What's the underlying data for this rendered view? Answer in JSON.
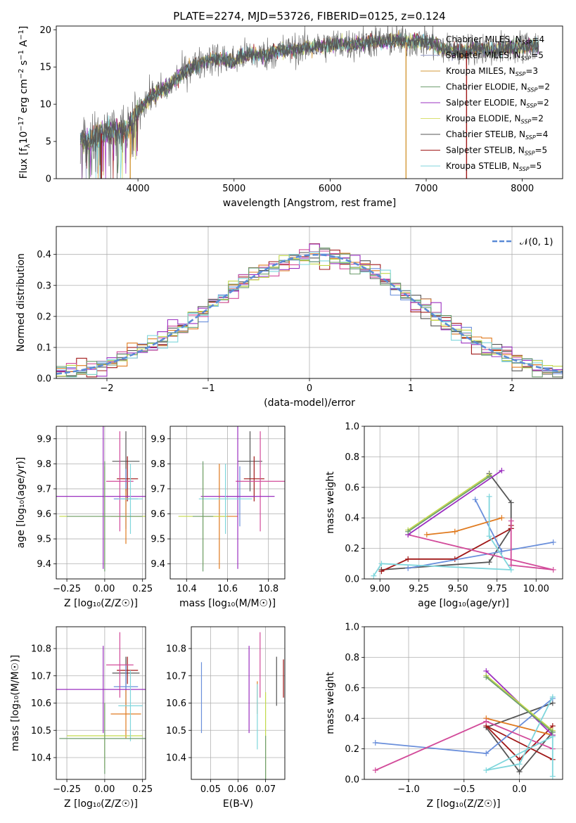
{
  "colors": [
    "#555555",
    "#a01818",
    "#6a8fdb",
    "#e07b20",
    "#d24b9a",
    "#9b30c0",
    "#c2d94a",
    "#7fd6dc",
    "#6f9e6f",
    "#f0e96a"
  ],
  "chart_data": [
    {
      "id": "spectrum",
      "type": "line",
      "title": "PLATE=2274, MJD=53726, FIBERID=0125, z=0.124",
      "xlabel": "wavelength [Angstrom, rest frame]",
      "ylabel": "Flux [f",
      "ylabel_sub": "λ",
      "ylabel_rest": "10",
      "ylabel_sup1": "−17",
      "ylabel_rest2": " erg cm",
      "ylabel_sup2": "−2",
      "ylabel_rest3": " s",
      "ylabel_sup3": "−1",
      "ylabel_rest4": " A",
      "ylabel_sup4": "−1",
      "ylabel_end": "]",
      "xlim": [
        3150,
        8420
      ],
      "ylim": [
        0,
        20.5
      ],
      "xticks": [
        4000,
        5000,
        6000,
        7000,
        8000
      ],
      "yticks": [
        0,
        5,
        10,
        15,
        20
      ],
      "envelope": [
        [
          3400,
          5.3
        ],
        [
          3500,
          5.0
        ],
        [
          3600,
          6.0
        ],
        [
          3700,
          6.4
        ],
        [
          3800,
          6.3
        ],
        [
          3900,
          6.6
        ],
        [
          4000,
          9.0
        ],
        [
          4100,
          10.7
        ],
        [
          4200,
          11.5
        ],
        [
          4300,
          12.2
        ],
        [
          4400,
          13.5
        ],
        [
          4500,
          14.5
        ],
        [
          4600,
          15.2
        ],
        [
          4700,
          15.8
        ],
        [
          4800,
          16.2
        ],
        [
          4900,
          16.0
        ],
        [
          5000,
          15.8
        ],
        [
          5100,
          16.5
        ],
        [
          5200,
          16.7
        ],
        [
          5300,
          16.6
        ],
        [
          5400,
          16.9
        ],
        [
          5500,
          17.2
        ],
        [
          5600,
          17.3
        ],
        [
          5700,
          17.5
        ],
        [
          5800,
          17.7
        ],
        [
          5900,
          17.8
        ],
        [
          6000,
          18.0
        ],
        [
          6100,
          18.1
        ],
        [
          6200,
          18.0
        ],
        [
          6300,
          18.1
        ],
        [
          6400,
          18.4
        ],
        [
          6500,
          18.4
        ],
        [
          6600,
          18.5
        ],
        [
          6700,
          18.6
        ],
        [
          6800,
          18.3
        ],
        [
          6900,
          18.5
        ],
        [
          7000,
          18.3
        ],
        [
          7100,
          17.9
        ],
        [
          7200,
          17.4
        ],
        [
          7300,
          17.0
        ],
        [
          7400,
          17.1
        ],
        [
          7500,
          17.5
        ],
        [
          7600,
          17.4
        ],
        [
          7700,
          17.3
        ],
        [
          7800,
          17.5
        ],
        [
          7900,
          17.6
        ],
        [
          8000,
          17.8
        ],
        [
          8100,
          17.9
        ],
        [
          8170,
          17.9
        ]
      ],
      "legend": [
        {
          "main": "Chabrier MILES, N",
          "sub": "SSP",
          "tail": "=4"
        },
        {
          "main": "Salpeter MILES, N",
          "sub": "SSP",
          "tail": "=5"
        },
        {
          "main": "Kroupa MILES, N",
          "sub": "SSP",
          "tail": "=3"
        },
        {
          "main": "Chabrier ELODIE, N",
          "sub": "SSP",
          "tail": "=2"
        },
        {
          "main": "Salpeter ELODIE, N",
          "sub": "SSP",
          "tail": "=2"
        },
        {
          "main": "Kroupa ELODIE, N",
          "sub": "SSP",
          "tail": "=2"
        },
        {
          "main": "Chabrier STELIB, N",
          "sub": "SSP",
          "tail": "=4"
        },
        {
          "main": "Salpeter STELIB, N",
          "sub": "SSP",
          "tail": "=5"
        },
        {
          "main": "Kroupa STELIB, N",
          "sub": "SSP",
          "tail": "=5"
        }
      ],
      "legend_colors": [
        "#555555",
        "#9aa0c8",
        "#d49a3a",
        "#6f9e6f",
        "#9b30c0",
        "#d8e070",
        "#555555",
        "#a01818",
        "#7fd6dc"
      ]
    },
    {
      "id": "residuals",
      "type": "area",
      "xlabel": "(data-model)/error",
      "ylabel": "Normed distribution",
      "xlim": [
        -2.5,
        2.5
      ],
      "ylim": [
        0,
        0.49
      ],
      "xticks": [
        -2,
        -1,
        0,
        1,
        2
      ],
      "yticks": [
        0.0,
        0.1,
        0.2,
        0.3,
        0.4
      ],
      "legend": "𝒩(0, 1)",
      "bin_width": 0.1,
      "bin_start": -2.5
    },
    {
      "id": "age-vs-Z",
      "type": "scatter",
      "xlabel": "Z [log₁₀(Z/Z☉)]",
      "ylabel": "age  [log₁₀(age/yr)]",
      "xlim": [
        -0.32,
        0.27
      ],
      "ylim": [
        9.34,
        9.95
      ],
      "xticks": [
        -0.25,
        0.0,
        0.25
      ],
      "yticks": [
        9.4,
        9.5,
        9.6,
        9.7,
        9.8,
        9.9
      ],
      "points": [
        {
          "x": 0.14,
          "y": 9.81,
          "xerr": 0.09,
          "yerr": 0.12,
          "c": 0
        },
        {
          "x": 0.15,
          "y": 9.74,
          "xerr": 0.07,
          "yerr": 0.09,
          "c": 1
        },
        {
          "x": 0.14,
          "y": 9.66,
          "xerr": 0.08,
          "yerr": 0.12,
          "c": 2
        },
        {
          "x": 0.14,
          "y": 9.59,
          "xerr": 0.1,
          "yerr": 0.11,
          "c": 3
        },
        {
          "x": 0.1,
          "y": 9.73,
          "xerr": 0.09,
          "yerr": 0.2,
          "c": 4
        },
        {
          "x": -0.01,
          "y": 9.67,
          "xerr": 0.34,
          "yerr": 0.29,
          "c": 5
        },
        {
          "x": 0.0,
          "y": 9.59,
          "xerr": 0.3,
          "yerr": 0.2,
          "c": 6
        },
        {
          "x": 0.17,
          "y": 9.66,
          "xerr": 0.08,
          "yerr": 0.14,
          "c": 7
        },
        {
          "x": 0.0,
          "y": 9.59,
          "xerr": 0.25,
          "yerr": 0.22,
          "c": 8
        }
      ]
    },
    {
      "id": "age-vs-mass",
      "type": "scatter",
      "xlabel": "mass [log₁₀(M/M☉)]",
      "ylabel": "",
      "xlim": [
        10.32,
        10.88
      ],
      "ylim": [
        9.34,
        9.95
      ],
      "xticks": [
        10.4,
        10.6,
        10.8
      ],
      "yticks": [
        9.4,
        9.5,
        9.6,
        9.7,
        9.8,
        9.9
      ],
      "points": [
        {
          "x": 10.71,
          "y": 9.81,
          "xerr": 0.06,
          "yerr": 0.12,
          "c": 0
        },
        {
          "x": 10.73,
          "y": 9.74,
          "xerr": 0.05,
          "yerr": 0.09,
          "c": 1
        },
        {
          "x": 10.66,
          "y": 9.67,
          "xerr": 0.08,
          "yerr": 0.12,
          "c": 2
        },
        {
          "x": 10.56,
          "y": 9.59,
          "xerr": 0.09,
          "yerr": 0.21,
          "c": 3
        },
        {
          "x": 10.76,
          "y": 9.73,
          "xerr": 0.12,
          "yerr": 0.2,
          "c": 4
        },
        {
          "x": 10.65,
          "y": 9.67,
          "xerr": 0.18,
          "yerr": 0.29,
          "c": 5
        },
        {
          "x": 10.48,
          "y": 9.59,
          "xerr": 0.12,
          "yerr": 0.2,
          "c": 6
        },
        {
          "x": 10.59,
          "y": 9.66,
          "xerr": 0.13,
          "yerr": 0.14,
          "c": 7
        },
        {
          "x": 10.48,
          "y": 9.59,
          "xerr": 0.05,
          "yerr": 0.22,
          "c": 8
        }
      ]
    },
    {
      "id": "weight-vs-age",
      "type": "line",
      "xlabel": "age  [log₁₀(age/yr)]",
      "ylabel": "mass weight",
      "xlim": [
        8.9,
        10.17
      ],
      "ylim": [
        0,
        1
      ],
      "xticks": [
        9.0,
        9.25,
        9.5,
        9.75,
        10.0
      ],
      "yticks": [
        0.0,
        0.2,
        0.4,
        0.6,
        0.8,
        1.0
      ],
      "series": [
        {
          "c": 0,
          "x": [
            9.7,
            9.84,
            9.84,
            9.7,
            9.01
          ],
          "y": [
            0.69,
            0.5,
            0.33,
            0.11,
            0.06
          ]
        },
        {
          "c": 1,
          "x": [
            9.84,
            9.84,
            9.48,
            9.18,
            9.01
          ],
          "y": [
            0.35,
            0.33,
            0.13,
            0.13,
            0.05
          ]
        },
        {
          "c": 2,
          "x": [
            9.61,
            9.78,
            10.11,
            9.18
          ],
          "y": [
            0.52,
            0.18,
            0.24,
            0.07
          ]
        },
        {
          "c": 3,
          "x": [
            9.78,
            9.48,
            9.3
          ],
          "y": [
            0.4,
            0.31,
            0.29
          ]
        },
        {
          "c": 4,
          "x": [
            9.84,
            9.84,
            10.11,
            9.18
          ],
          "y": [
            0.38,
            0.09,
            0.06,
            0.29
          ]
        },
        {
          "c": 5,
          "x": [
            9.78,
            9.18
          ],
          "y": [
            0.71,
            0.29
          ]
        },
        {
          "c": 6,
          "x": [
            9.7,
            9.18
          ],
          "y": [
            0.68,
            0.32
          ]
        },
        {
          "c": 7,
          "x": [
            9.7,
            9.7,
            9.84,
            9.01,
            8.96
          ],
          "y": [
            0.54,
            0.28,
            0.06,
            0.1,
            0.02
          ]
        },
        {
          "c": 8,
          "x": [
            9.7,
            9.18
          ],
          "y": [
            0.67,
            0.31
          ]
        }
      ]
    },
    {
      "id": "mass-vs-Z",
      "type": "scatter",
      "xlabel": "Z [log₁₀(Z/Z☉)]",
      "ylabel": "mass [log₁₀(M/M☉)]",
      "xlim": [
        -0.32,
        0.27
      ],
      "ylim": [
        10.32,
        10.88
      ],
      "xticks": [
        -0.25,
        0.0,
        0.25
      ],
      "yticks": [
        10.4,
        10.5,
        10.6,
        10.7,
        10.8
      ],
      "points": [
        {
          "x": 0.14,
          "y": 10.71,
          "xerr": 0.09,
          "yerr": 0.06,
          "c": 0
        },
        {
          "x": 0.15,
          "y": 10.72,
          "xerr": 0.07,
          "yerr": 0.05,
          "c": 1
        },
        {
          "x": 0.14,
          "y": 10.66,
          "xerr": 0.08,
          "yerr": 0.08,
          "c": 2
        },
        {
          "x": 0.14,
          "y": 10.56,
          "xerr": 0.1,
          "yerr": 0.09,
          "c": 3
        },
        {
          "x": 0.1,
          "y": 10.74,
          "xerr": 0.09,
          "yerr": 0.12,
          "c": 4
        },
        {
          "x": -0.01,
          "y": 10.65,
          "xerr": 0.34,
          "yerr": 0.16,
          "c": 5
        },
        {
          "x": 0.0,
          "y": 10.48,
          "xerr": 0.25,
          "yerr": 0.12,
          "c": 6
        },
        {
          "x": 0.17,
          "y": 10.59,
          "xerr": 0.08,
          "yerr": 0.13,
          "c": 7
        },
        {
          "x": 0.0,
          "y": 10.47,
          "xerr": 0.3,
          "yerr": 0.13,
          "c": 8
        }
      ]
    },
    {
      "id": "mass-vs-ebv",
      "type": "scatter",
      "xlabel": "E(B-V)",
      "ylabel": "",
      "xlim": [
        0.043,
        0.077
      ],
      "ylim": [
        10.32,
        10.88
      ],
      "xticks": [
        0.05,
        0.06,
        0.07
      ],
      "yticks": [
        10.4,
        10.5,
        10.6,
        10.7,
        10.8
      ],
      "points": [
        {
          "x": 0.074,
          "y": 10.68,
          "xerr": 0.0,
          "yerr": 0.09,
          "c": 0
        },
        {
          "x": 0.0765,
          "y": 10.69,
          "xerr": 0.0,
          "yerr": 0.07,
          "c": 1
        },
        {
          "x": 0.0467,
          "y": 10.62,
          "xerr": 0.0,
          "yerr": 0.13,
          "c": 2
        },
        {
          "x": 0.067,
          "y": 10.62,
          "xerr": 0.0,
          "yerr": 0.06,
          "c": 3
        },
        {
          "x": 0.068,
          "y": 10.74,
          "xerr": 0.0,
          "yerr": 0.12,
          "c": 4
        },
        {
          "x": 0.064,
          "y": 10.65,
          "xerr": 0.0,
          "yerr": 0.16,
          "c": 5
        },
        {
          "x": 0.07,
          "y": 10.48,
          "xerr": 0.0,
          "yerr": 0.16,
          "c": 6
        },
        {
          "x": 0.067,
          "y": 10.55,
          "xerr": 0.0,
          "yerr": 0.12,
          "c": 7
        },
        {
          "x": 0.07,
          "y": 10.4,
          "xerr": 0.0,
          "yerr": 0.08,
          "c": 8
        }
      ]
    },
    {
      "id": "weight-vs-Z",
      "type": "line",
      "xlabel": "Z [log₁₀(Z/Z☉)]",
      "ylabel": "mass weight",
      "xlim": [
        -1.4,
        0.39
      ],
      "ylim": [
        0,
        1
      ],
      "xticks": [
        -1.0,
        -0.5,
        0.0
      ],
      "yticks": [
        0.0,
        0.2,
        0.4,
        0.6,
        0.8,
        1.0
      ],
      "series": [
        {
          "c": 0,
          "x": [
            0.3,
            -0.3,
            0.0,
            0.3
          ],
          "y": [
            0.5,
            0.34,
            0.05,
            0.31
          ]
        },
        {
          "c": 1,
          "x": [
            0.3,
            0.0,
            -0.3,
            0.3
          ],
          "y": [
            0.35,
            0.13,
            0.35,
            0.13
          ]
        },
        {
          "c": 2,
          "x": [
            0.3,
            -0.3,
            -1.3
          ],
          "y": [
            0.53,
            0.17,
            0.24
          ]
        },
        {
          "c": 3,
          "x": [
            -0.3,
            0.3
          ],
          "y": [
            0.4,
            0.29
          ]
        },
        {
          "c": 4,
          "x": [
            -1.3,
            -0.3,
            0.3
          ],
          "y": [
            0.06,
            0.38,
            0.2
          ]
        },
        {
          "c": 5,
          "x": [
            -0.3,
            0.3
          ],
          "y": [
            0.71,
            0.29
          ]
        },
        {
          "c": 6,
          "x": [
            -0.3,
            0.3
          ],
          "y": [
            0.68,
            0.32
          ]
        },
        {
          "c": 7,
          "x": [
            0.3,
            0.0,
            -0.3,
            0.3,
            0.3
          ],
          "y": [
            0.54,
            0.1,
            0.06,
            0.28,
            0.02
          ]
        },
        {
          "c": 8,
          "x": [
            -0.3,
            0.3
          ],
          "y": [
            0.67,
            0.31
          ]
        }
      ]
    }
  ]
}
